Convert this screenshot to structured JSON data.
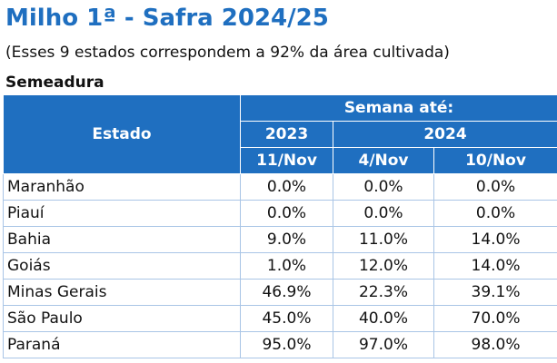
{
  "title": "Milho 1ª - Safra 2024/25",
  "subtitle": "(Esses 9 estados correspondem a 92% da área cultivada)",
  "section": "Semeadura",
  "table": {
    "header": {
      "estado": "Estado",
      "semana": "Semana até:",
      "years": [
        "2023",
        "2024"
      ],
      "dates": [
        "11/Nov",
        "4/Nov",
        "10/Nov"
      ]
    },
    "rows": [
      {
        "estado": "Maranhão",
        "values": [
          "0.0%",
          "0.0%",
          "0.0%"
        ]
      },
      {
        "estado": "Piauí",
        "values": [
          "0.0%",
          "0.0%",
          "0.0%"
        ]
      },
      {
        "estado": "Bahia",
        "values": [
          "9.0%",
          "11.0%",
          "14.0%"
        ]
      },
      {
        "estado": "Goiás",
        "values": [
          "1.0%",
          "12.0%",
          "14.0%"
        ]
      },
      {
        "estado": "Minas Gerais",
        "values": [
          "46.9%",
          "22.3%",
          "39.1%"
        ]
      },
      {
        "estado": "São Paulo",
        "values": [
          "45.0%",
          "40.0%",
          "70.0%"
        ]
      },
      {
        "estado": "Paraná",
        "values": [
          "95.0%",
          "97.0%",
          "98.0%"
        ]
      }
    ]
  },
  "colors": {
    "header_bg": "#1f6fc0",
    "title": "#1f6fc0",
    "border": "#a9c5e6"
  }
}
